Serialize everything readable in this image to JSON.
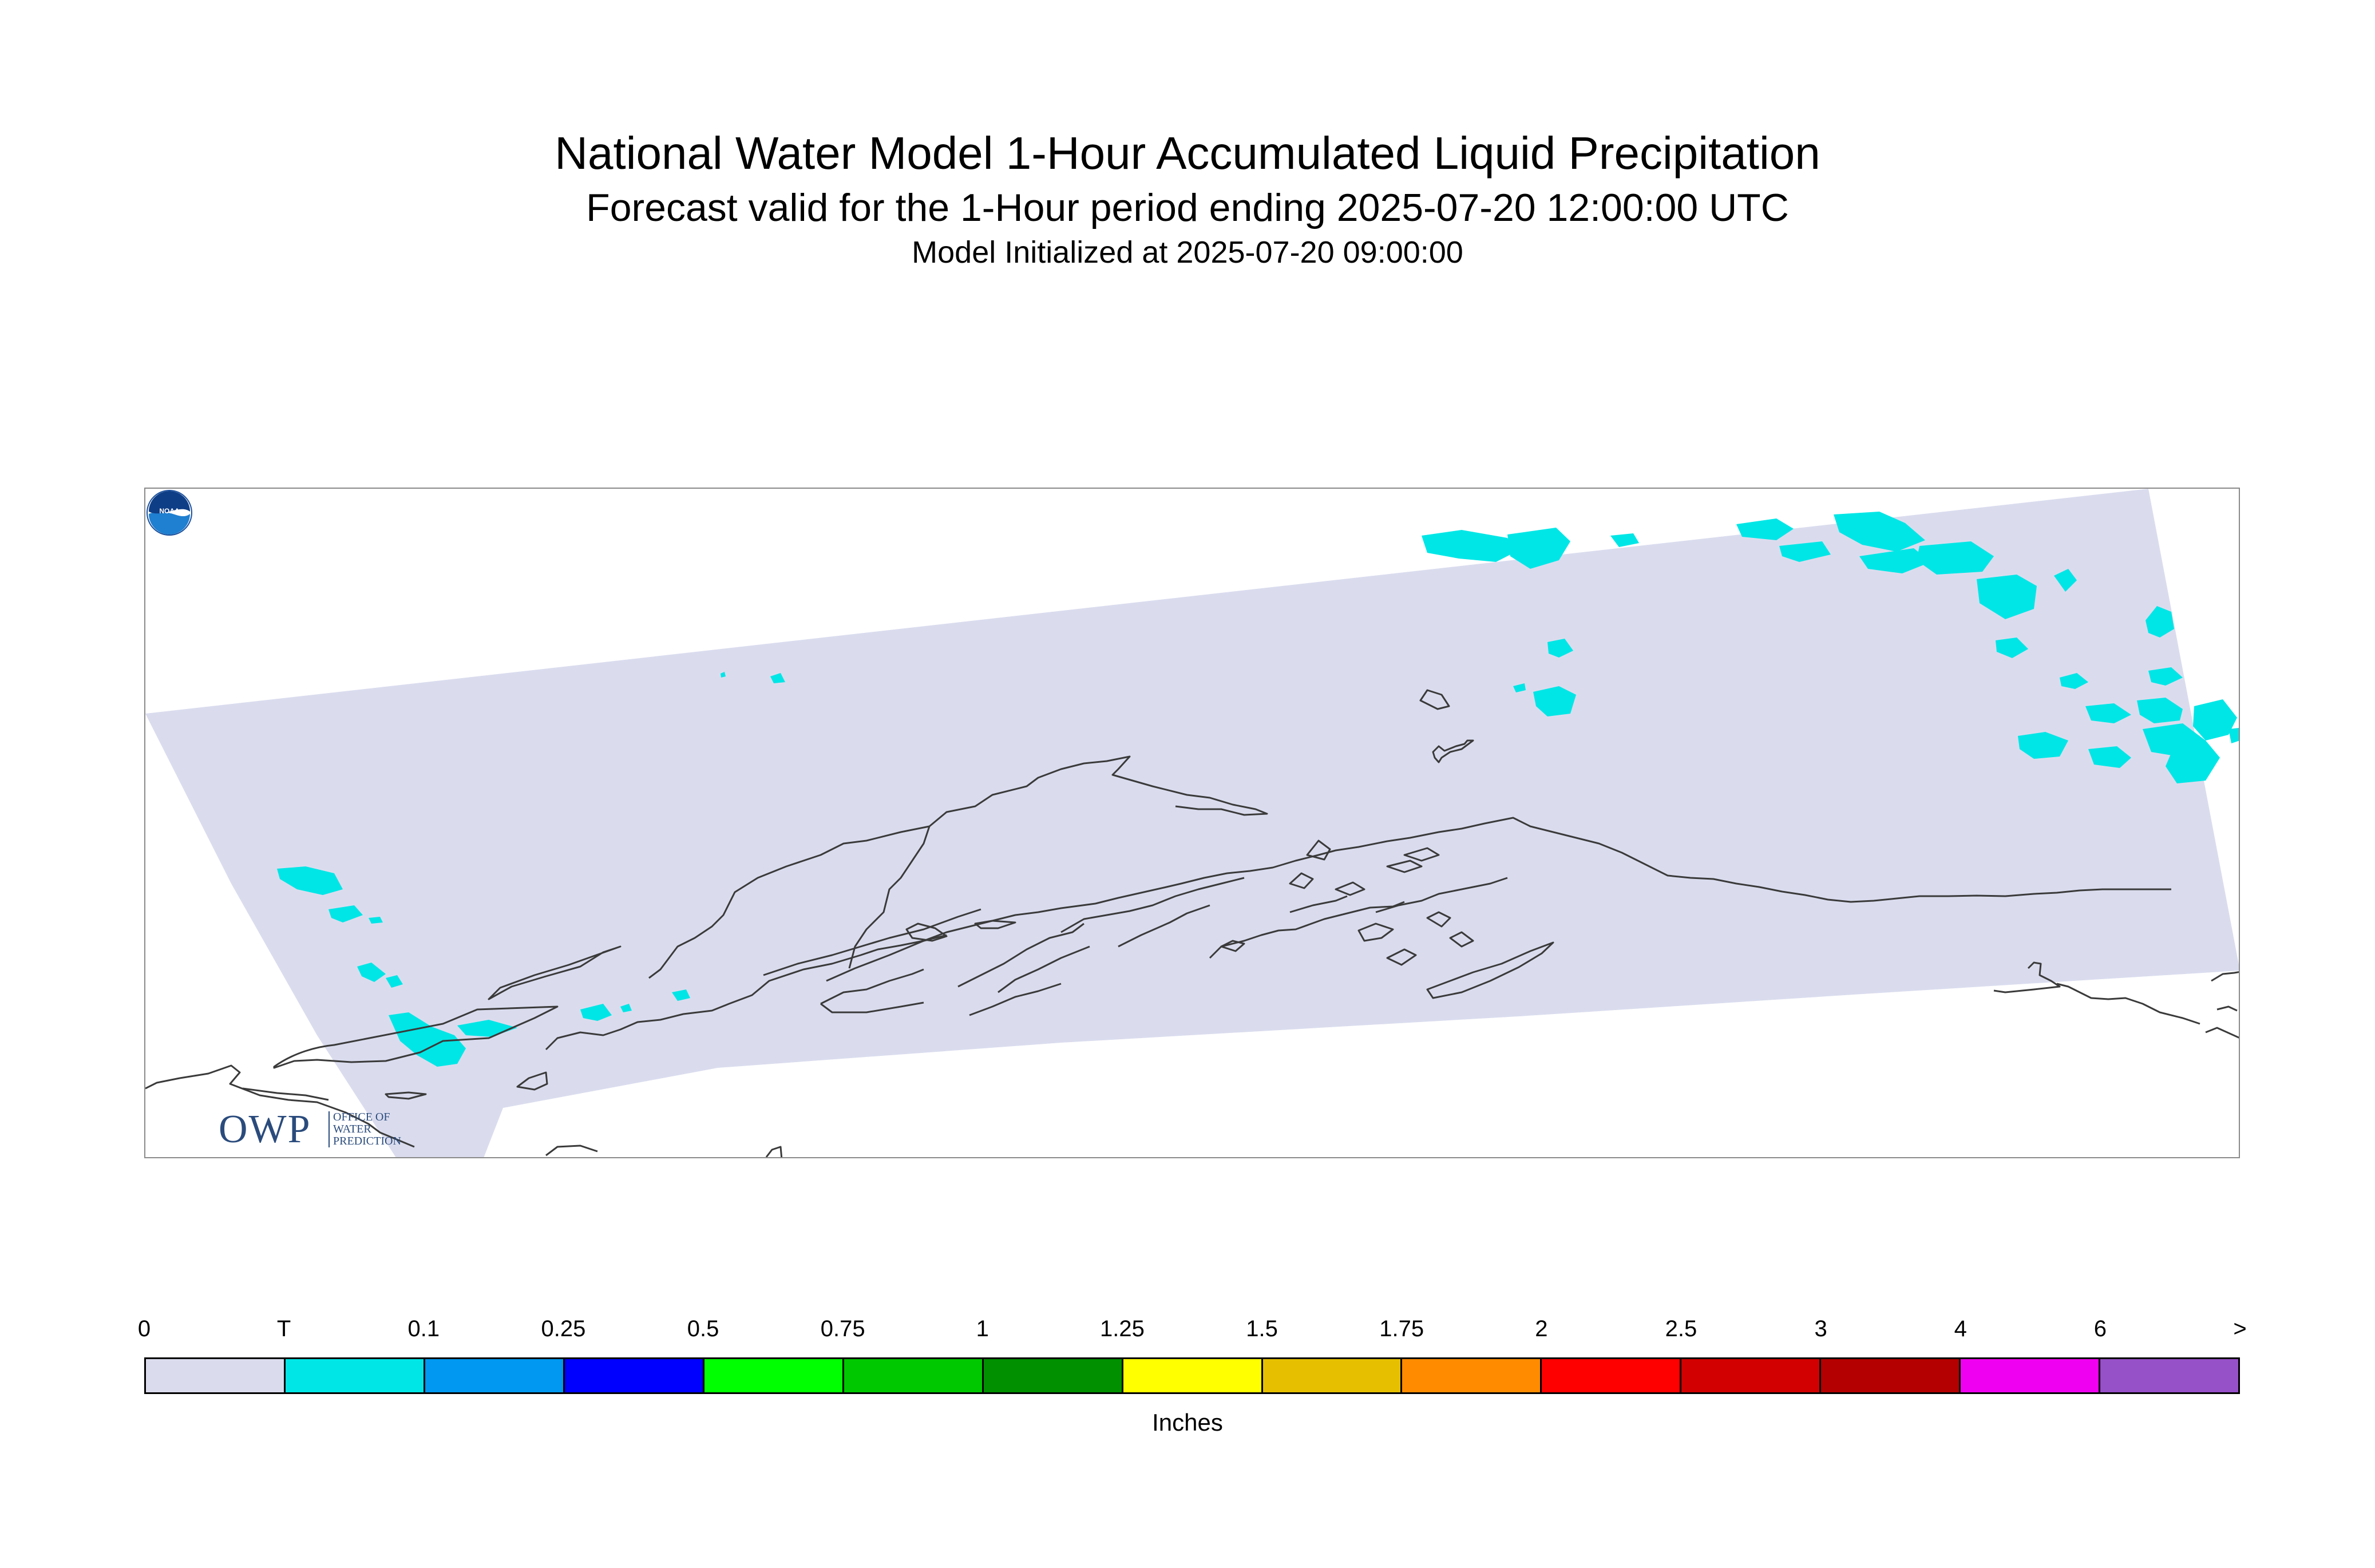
{
  "title": "National Water Model 1-Hour Accumulated Liquid Precipitation",
  "subtitle": "Forecast valid for the 1-Hour period ending 2025-07-20 12:00:00 UTC",
  "init_text": "Model Initialized at 2025-07-20 09:00:00",
  "map": {
    "region_fill": "#dadcee",
    "coast_color": "#3a3a3a",
    "precip_color": "#00e6e6",
    "owp_logo": {
      "letters": "OWP",
      "sub1": "OFFICE OF",
      "sub2": "WATER",
      "sub3": "PREDICTION",
      "color": "#2a4b7c"
    },
    "noaa_logo": {
      "text": "NOAA"
    }
  },
  "legend": {
    "units": "Inches",
    "colors": [
      "#dadcee",
      "#00e6e6",
      "#0098f0",
      "#0000ff",
      "#00ff00",
      "#00c800",
      "#009000",
      "#ffff00",
      "#e6c000",
      "#ff8c00",
      "#ff0000",
      "#d20000",
      "#b40000",
      "#f000f0",
      "#9650c8"
    ],
    "tick_labels": [
      "0",
      "T",
      "0.1",
      "0.25",
      "0.5",
      "0.75",
      "1",
      "1.25",
      "1.5",
      "1.75",
      "2",
      "2.5",
      "3",
      "4",
      "6",
      ">"
    ]
  }
}
